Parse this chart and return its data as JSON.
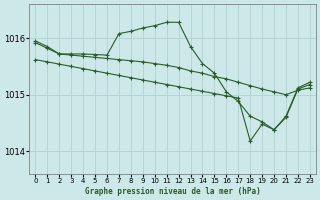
{
  "title": "Graphe pression niveau de la mer (hPa)",
  "bg_color": "#cce8e8",
  "grid_color": "#aacece",
  "line_color": "#2a5c2a",
  "ylim": [
    1013.6,
    1016.6
  ],
  "yticks": [
    1014,
    1015,
    1016
  ],
  "xlim": [
    -0.5,
    23.5
  ],
  "xticks": [
    0,
    1,
    2,
    3,
    4,
    5,
    6,
    7,
    8,
    9,
    10,
    11,
    12,
    13,
    14,
    15,
    16,
    17,
    18,
    19,
    20,
    21,
    22,
    23
  ],
  "series1_x": [
    0,
    1,
    2,
    3,
    4,
    5,
    6,
    7,
    8,
    9,
    10,
    11,
    12,
    13,
    14,
    15,
    16,
    17,
    18,
    19,
    20,
    21,
    22,
    23
  ],
  "series1_y": [
    1015.95,
    1015.85,
    1015.72,
    1015.72,
    1015.72,
    1015.71,
    1015.7,
    1016.08,
    1016.12,
    1016.18,
    1016.22,
    1016.28,
    1016.28,
    1015.85,
    1015.55,
    1015.38,
    1015.05,
    1014.88,
    1014.62,
    1014.52,
    1014.38,
    1014.62,
    1015.12,
    1015.22
  ],
  "series2_x": [
    0,
    1,
    2,
    3,
    4,
    5,
    6,
    7,
    8,
    9,
    10,
    11,
    12,
    13,
    14,
    15,
    16,
    17,
    18,
    19,
    20,
    21,
    22,
    23
  ],
  "series2_y": [
    1015.92,
    1015.82,
    1015.72,
    1015.7,
    1015.68,
    1015.66,
    1015.64,
    1015.62,
    1015.6,
    1015.58,
    1015.55,
    1015.52,
    1015.48,
    1015.42,
    1015.38,
    1015.32,
    1015.28,
    1015.22,
    1015.16,
    1015.1,
    1015.05,
    1015.0,
    1015.08,
    1015.12
  ],
  "series3_x": [
    0,
    1,
    2,
    3,
    4,
    5,
    6,
    7,
    8,
    9,
    10,
    11,
    12,
    13,
    14,
    15,
    16,
    17,
    18,
    19,
    20,
    21,
    22,
    23
  ],
  "series3_y": [
    1015.62,
    1015.58,
    1015.54,
    1015.5,
    1015.46,
    1015.42,
    1015.38,
    1015.34,
    1015.3,
    1015.26,
    1015.22,
    1015.18,
    1015.14,
    1015.1,
    1015.06,
    1015.02,
    1014.98,
    1014.94,
    1014.18,
    1014.48,
    1014.38,
    1014.6,
    1015.1,
    1015.18
  ]
}
